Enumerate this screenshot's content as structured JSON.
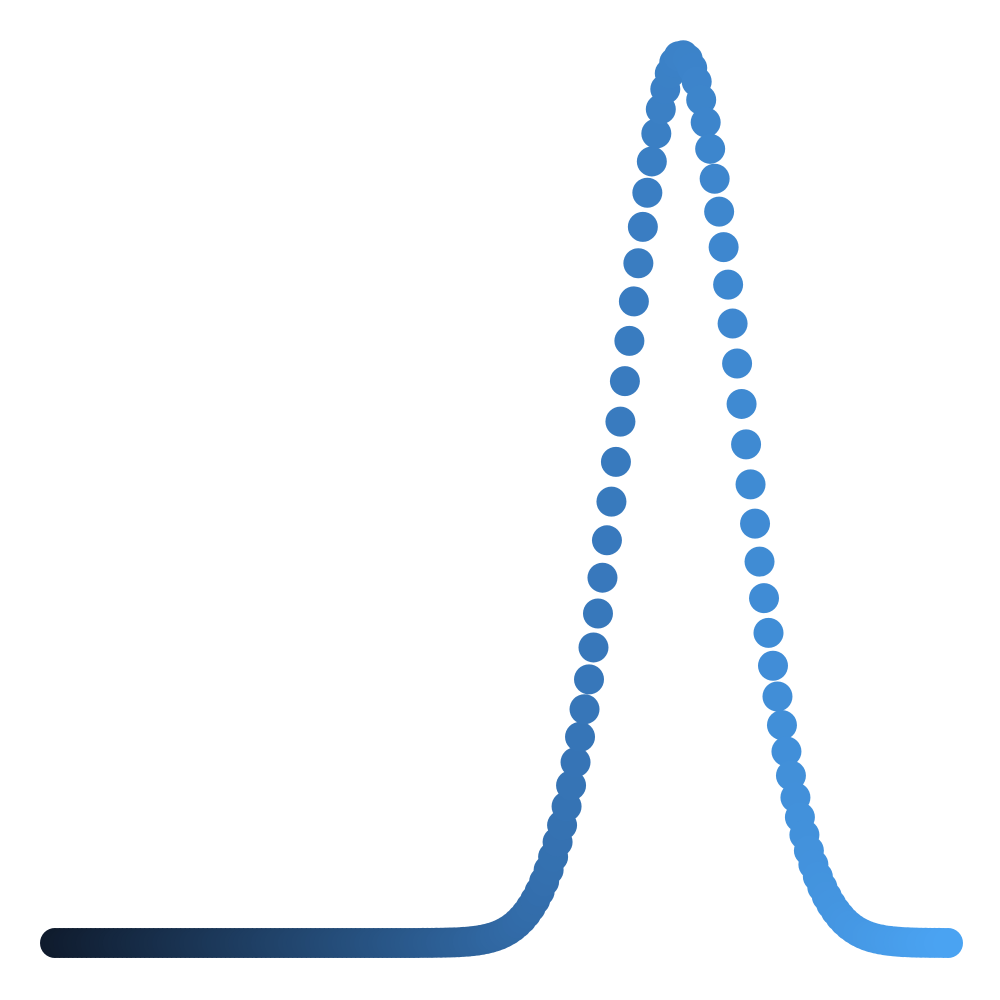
{
  "chart_data": {
    "type": "scatter",
    "title": "",
    "xlabel": "",
    "ylabel": "",
    "xlim": [
      0,
      1
    ],
    "ylim": [
      0,
      1
    ],
    "grid": false,
    "legend": "none",
    "axes_visible": false,
    "color_gradient": {
      "from": "#0f1b2d",
      "mid": "#3777ba",
      "to": "#4aa3f2"
    },
    "series": [
      {
        "shape": "gaussian",
        "mean": 0.7021,
        "stddev": 0.0668,
        "baseline": 0,
        "peak": 1,
        "points": 200
      }
    ]
  }
}
